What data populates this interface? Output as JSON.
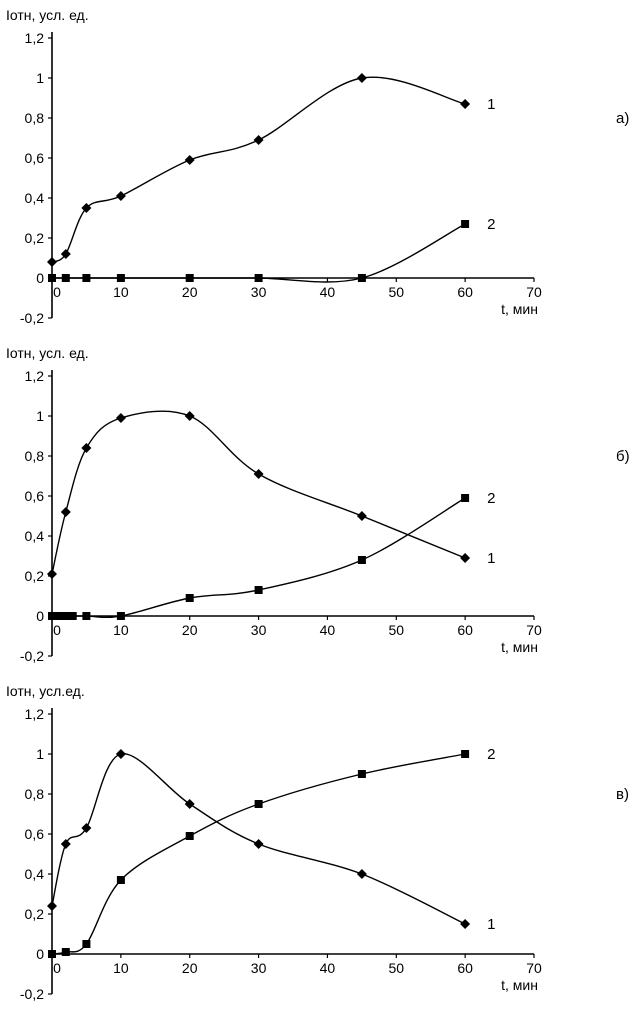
{
  "page": {
    "background": "#ffffff",
    "line_color": "#000000"
  },
  "chart_data": [
    {
      "type": "line",
      "panel_label": "а)",
      "title": "",
      "ylabel": "Iотн, усл. ед.",
      "xlabel": "t, мин",
      "xlim": [
        0,
        70
      ],
      "ylim": [
        -0.2,
        1.2
      ],
      "grid": false,
      "legend_position": "end-of-line",
      "xticks": [
        0,
        10,
        20,
        30,
        40,
        50,
        60,
        70
      ],
      "xtick_labels": [
        "0",
        "10",
        "20",
        "30",
        "40",
        "50",
        "60",
        "70"
      ],
      "yticks": [
        -0.2,
        0,
        0.2,
        0.4,
        0.6,
        0.8,
        1,
        1.2
      ],
      "ytick_labels": [
        "-0,2",
        "0",
        "0,2",
        "0,4",
        "0,6",
        "0,8",
        "1",
        "1,2"
      ],
      "series": [
        {
          "name": "1",
          "marker": "diamond",
          "color": "#000000",
          "x": [
            0,
            2,
            5,
            10,
            20,
            30,
            45,
            60
          ],
          "y": [
            0.08,
            0.12,
            0.35,
            0.41,
            0.59,
            0.69,
            1.0,
            0.87
          ]
        },
        {
          "name": "2",
          "marker": "square",
          "color": "#000000",
          "x": [
            0,
            2,
            5,
            10,
            20,
            30,
            45,
            60
          ],
          "y": [
            0,
            0,
            0,
            0,
            0,
            0,
            0,
            0.27
          ]
        }
      ]
    },
    {
      "type": "line",
      "panel_label": "б)",
      "title": "",
      "ylabel": "Iотн, усл. ед.",
      "xlabel": "t, мин",
      "xlim": [
        0,
        70
      ],
      "ylim": [
        -0.2,
        1.2
      ],
      "grid": false,
      "legend_position": "end-of-line",
      "xticks": [
        0,
        10,
        20,
        30,
        40,
        50,
        60,
        70
      ],
      "xtick_labels": [
        "0",
        "10",
        "20",
        "30",
        "40",
        "50",
        "60",
        "70"
      ],
      "yticks": [
        -0.2,
        0,
        0.2,
        0.4,
        0.6,
        0.8,
        1,
        1.2
      ],
      "ytick_labels": [
        "-0,2",
        "0",
        "0,2",
        "0,4",
        "0,6",
        "0,8",
        "1",
        "1,2"
      ],
      "series": [
        {
          "name": "1",
          "marker": "diamond",
          "color": "#000000",
          "x": [
            0,
            2,
            5,
            10,
            20,
            30,
            45,
            60
          ],
          "y": [
            0.21,
            0.52,
            0.84,
            0.99,
            1.0,
            0.71,
            0.5,
            0.29
          ]
        },
        {
          "name": "2",
          "marker": "square",
          "color": "#000000",
          "x": [
            0,
            1,
            2,
            3,
            5,
            10,
            20,
            30,
            45,
            60
          ],
          "y": [
            0,
            0,
            0,
            0,
            0,
            0,
            0.09,
            0.13,
            0.28,
            0.59
          ]
        }
      ]
    },
    {
      "type": "line",
      "panel_label": "в)",
      "title": "",
      "ylabel": "Iотн, усл.ед.",
      "xlabel": "t, мин",
      "xlim": [
        0,
        70
      ],
      "ylim": [
        -0.2,
        1.2
      ],
      "grid": false,
      "legend_position": "end-of-line",
      "xticks": [
        0,
        10,
        20,
        30,
        40,
        50,
        60,
        70
      ],
      "xtick_labels": [
        "0",
        "10",
        "20",
        "30",
        "40",
        "50",
        "60",
        "70"
      ],
      "yticks": [
        -0.2,
        0,
        0.2,
        0.4,
        0.6,
        0.8,
        1,
        1.2
      ],
      "ytick_labels": [
        "-0,2",
        "0",
        "0,2",
        "0,4",
        "0,6",
        "0,8",
        "1",
        "1,2"
      ],
      "series": [
        {
          "name": "1",
          "marker": "diamond",
          "color": "#000000",
          "x": [
            0,
            2,
            5,
            10,
            20,
            30,
            45,
            60
          ],
          "y": [
            0.24,
            0.55,
            0.63,
            1.0,
            0.75,
            0.55,
            0.4,
            0.15
          ]
        },
        {
          "name": "2",
          "marker": "square",
          "color": "#000000",
          "x": [
            0,
            2,
            5,
            10,
            20,
            30,
            45,
            60
          ],
          "y": [
            0,
            0.01,
            0.05,
            0.37,
            0.59,
            0.75,
            0.9,
            1.0
          ]
        }
      ]
    }
  ]
}
